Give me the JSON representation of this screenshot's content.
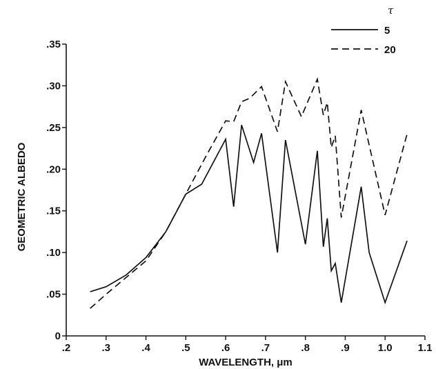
{
  "chart_data": {
    "type": "line",
    "title": "",
    "xlabel": "WAVELENGTH, μm",
    "ylabel": "GEOMETRIC ALBEDO",
    "xlim": [
      0.2,
      1.1
    ],
    "ylim": [
      0,
      0.35
    ],
    "xticks": [
      0.2,
      0.3,
      0.4,
      0.5,
      0.6,
      0.7,
      0.8,
      0.9,
      1.0,
      1.1
    ],
    "xtick_labels": [
      ".2",
      ".3",
      ".4",
      ".5",
      ".6",
      ".7",
      ".8",
      ".9",
      "1.0",
      "1.1"
    ],
    "yticks": [
      0,
      0.05,
      0.1,
      0.15,
      0.2,
      0.25,
      0.3,
      0.35
    ],
    "ytick_labels": [
      "0",
      ".05",
      ".10",
      ".15",
      ".20",
      ".25",
      ".30",
      ".35"
    ],
    "grid": false,
    "legend": {
      "title": "τ",
      "placement": "top-right"
    },
    "series": [
      {
        "name": "5",
        "style": "solid",
        "x": [
          0.26,
          0.3,
          0.35,
          0.4,
          0.45,
          0.5,
          0.54,
          0.6,
          0.62,
          0.64,
          0.67,
          0.69,
          0.73,
          0.75,
          0.8,
          0.83,
          0.845,
          0.855,
          0.865,
          0.875,
          0.89,
          0.94,
          0.96,
          1.0,
          1.055
        ],
        "y": [
          0.053,
          0.059,
          0.073,
          0.094,
          0.125,
          0.17,
          0.182,
          0.236,
          0.155,
          0.253,
          0.208,
          0.243,
          0.1,
          0.235,
          0.11,
          0.222,
          0.107,
          0.141,
          0.078,
          0.087,
          0.04,
          0.179,
          0.1,
          0.04,
          0.114
        ]
      },
      {
        "name": "20",
        "style": "dashed",
        "x": [
          0.26,
          0.3,
          0.35,
          0.4,
          0.45,
          0.5,
          0.55,
          0.6,
          0.62,
          0.64,
          0.66,
          0.69,
          0.73,
          0.75,
          0.79,
          0.83,
          0.845,
          0.855,
          0.865,
          0.875,
          0.89,
          0.94,
          1.0,
          1.055
        ],
        "y": [
          0.033,
          0.05,
          0.07,
          0.09,
          0.125,
          0.17,
          0.215,
          0.258,
          0.257,
          0.281,
          0.285,
          0.299,
          0.245,
          0.305,
          0.263,
          0.308,
          0.265,
          0.28,
          0.226,
          0.24,
          0.142,
          0.271,
          0.145,
          0.242
        ]
      }
    ]
  }
}
